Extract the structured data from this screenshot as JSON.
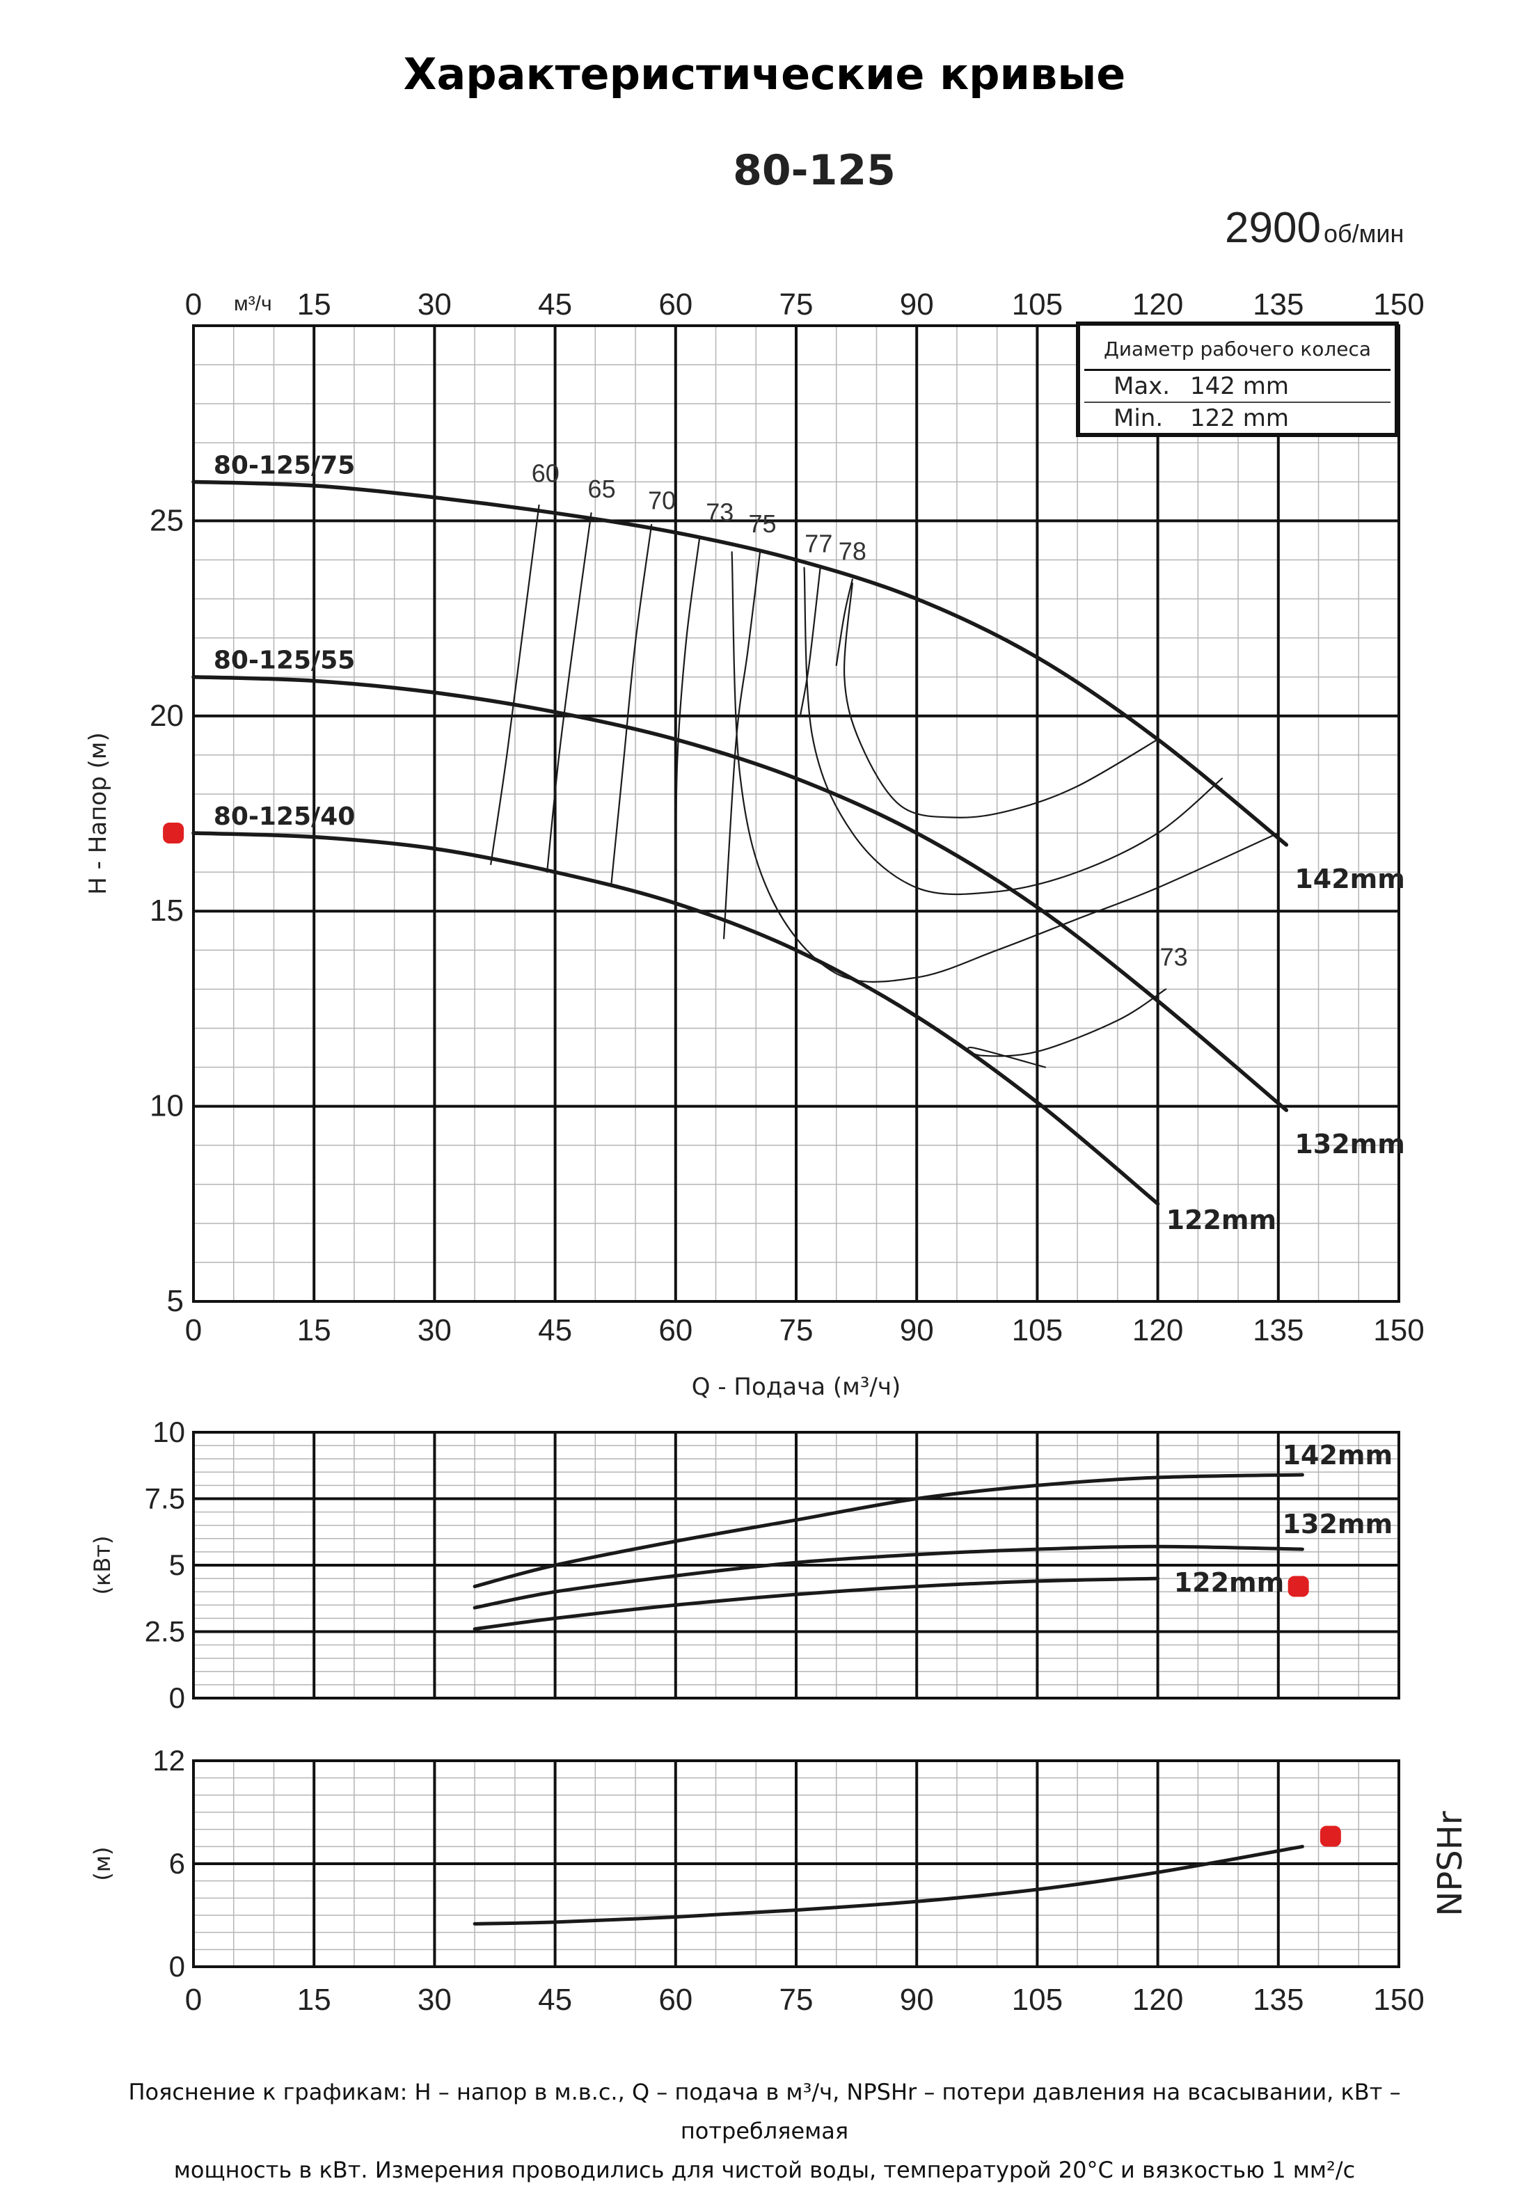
{
  "page": {
    "title": "Характеристические кривые",
    "model": "80-125",
    "speed_value": "2900",
    "speed_unit": "об/мин",
    "footnote_line1": "Пояснение к графикам: H – напор в м.в.с., Q – подача в м³/ч, NPSHr – потери давления на всасывании, кВт – потребляемая",
    "footnote_line2": "мощность в кВт. Измерения проводились для чистой воды, температурой 20°C и вязкостью 1 мм²/с"
  },
  "legend": {
    "header": "Диаметр рабочего колеса",
    "rows": [
      {
        "key": "Max.",
        "value": "142 mm"
      },
      {
        "key": "Min.",
        "value": "122 mm"
      }
    ]
  },
  "colors": {
    "curve": "#1a1a1a",
    "grid_major": "#111111",
    "grid_minor": "#b5b5b5",
    "marker": "#e02020"
  },
  "chart_data": [
    {
      "type": "line",
      "id": "head",
      "xlabel": "Q - Подача (м³/ч)",
      "ylabel": "H - Напор (м)",
      "x_unit_label": "м³/ч",
      "xlim": [
        0,
        150
      ],
      "ylim": [
        5,
        30
      ],
      "xticks": [
        0,
        15,
        30,
        45,
        60,
        75,
        90,
        105,
        120,
        135,
        150
      ],
      "yticks": [
        5,
        10,
        15,
        20,
        25
      ],
      "grid": true,
      "series": [
        {
          "name": "142mm",
          "label_left": "80-125/75",
          "x": [
            0,
            15,
            30,
            45,
            60,
            75,
            90,
            105,
            120,
            136
          ],
          "y": [
            26.0,
            25.9,
            25.6,
            25.2,
            24.7,
            24.0,
            23.0,
            21.5,
            19.4,
            16.7
          ]
        },
        {
          "name": "132mm",
          "label_left": "80-125/55",
          "x": [
            0,
            15,
            30,
            45,
            60,
            75,
            90,
            105,
            120,
            136
          ],
          "y": [
            21.0,
            20.9,
            20.6,
            20.1,
            19.4,
            18.4,
            17.0,
            15.1,
            12.7,
            9.9
          ]
        },
        {
          "name": "122mm",
          "label_left": "80-125/40",
          "x": [
            0,
            15,
            30,
            45,
            60,
            75,
            90,
            105,
            120
          ],
          "y": [
            17.0,
            16.9,
            16.6,
            16.0,
            15.2,
            14.0,
            12.3,
            10.1,
            7.5
          ]
        }
      ],
      "efficiency_labels": [
        "60",
        "65",
        "70",
        "73",
        "75",
        "77",
        "78",
        "73"
      ],
      "efficiency_lines": [
        {
          "label": "60",
          "x": [
            37,
            39,
            41,
            43
          ],
          "y": [
            16.2,
            19.0,
            22.2,
            25.4
          ]
        },
        {
          "label": "65",
          "x": [
            44,
            45.5,
            47.5,
            49.5
          ],
          "y": [
            16.0,
            19.0,
            22.2,
            25.2
          ]
        },
        {
          "label": "70",
          "x": [
            52,
            53.5,
            55,
            57
          ],
          "y": [
            15.7,
            18.8,
            21.9,
            24.9
          ]
        },
        {
          "label": "73",
          "x": [
            60,
            60.2,
            61.3,
            63
          ],
          "y": [
            15.1,
            18.8,
            21.9,
            24.6
          ]
        },
        {
          "label": "75",
          "x": [
            66,
            67.5,
            69,
            70.5
          ],
          "y": [
            14.3,
            19.3,
            21.7,
            24.2
          ]
        },
        {
          "label": "77",
          "x": [
            75.5,
            76.6,
            78
          ],
          "y": [
            20.0,
            21.3,
            23.8
          ]
        },
        {
          "label": "78",
          "x": [
            80,
            81,
            82
          ],
          "y": [
            21.3,
            22.6,
            23.5
          ]
        }
      ],
      "efficiency_loops": [
        {
          "x": [
            82,
            81,
            83,
            88,
            95,
            102,
            110,
            120
          ],
          "y": [
            23.4,
            21.0,
            19.3,
            17.7,
            17.4,
            17.6,
            18.2,
            19.4
          ]
        },
        {
          "x": [
            76,
            77,
            82,
            90,
            100,
            110,
            120,
            128
          ],
          "y": [
            23.8,
            19.5,
            17.0,
            15.6,
            15.5,
            16.0,
            17.0,
            18.4
          ]
        },
        {
          "x": [
            67,
            68,
            72,
            80,
            90,
            100,
            110,
            120,
            135
          ],
          "y": [
            24.2,
            18.5,
            15.3,
            13.4,
            13.3,
            14.0,
            14.8,
            15.6,
            17.0
          ]
        },
        {
          "x": [
            106,
            97,
            98,
            105,
            115,
            121
          ],
          "y": [
            11.0,
            11.5,
            11.3,
            11.4,
            12.2,
            13.0
          ]
        }
      ],
      "markers": [
        {
          "x": -2.5,
          "y": 17.0
        }
      ]
    },
    {
      "type": "line",
      "id": "power",
      "ylabel": "(кВт)",
      "xlim": [
        0,
        150
      ],
      "ylim": [
        0,
        10
      ],
      "yticks": [
        0,
        2.5,
        5,
        7.5,
        10
      ],
      "ytick_labels": [
        "0",
        "2.5",
        "5",
        "7.5",
        "10"
      ],
      "grid": true,
      "series": [
        {
          "name": "142mm",
          "x": [
            35,
            45,
            60,
            75,
            90,
            105,
            120,
            138
          ],
          "y": [
            4.2,
            5.0,
            5.9,
            6.7,
            7.5,
            8.0,
            8.3,
            8.4
          ]
        },
        {
          "name": "132mm",
          "x": [
            35,
            45,
            60,
            75,
            90,
            105,
            120,
            138
          ],
          "y": [
            3.4,
            4.0,
            4.6,
            5.1,
            5.4,
            5.6,
            5.7,
            5.6
          ]
        },
        {
          "name": "122mm",
          "x": [
            35,
            45,
            60,
            75,
            90,
            105,
            120
          ],
          "y": [
            2.6,
            3.0,
            3.5,
            3.9,
            4.2,
            4.4,
            4.5
          ]
        }
      ],
      "markers": [
        {
          "x": 137.5,
          "y": 4.2
        }
      ]
    },
    {
      "type": "line",
      "id": "npsh",
      "ylabel": "(м)",
      "side_label": "NPSHr",
      "xlim": [
        0,
        150
      ],
      "ylim": [
        0,
        12
      ],
      "xticks": [
        0,
        15,
        30,
        45,
        60,
        75,
        90,
        105,
        120,
        135,
        150
      ],
      "yticks": [
        0,
        6,
        12
      ],
      "grid": true,
      "series": [
        {
          "name": "NPSHr",
          "x": [
            35,
            45,
            60,
            75,
            90,
            105,
            120,
            138
          ],
          "y": [
            2.5,
            2.6,
            2.9,
            3.3,
            3.8,
            4.5,
            5.5,
            7.0
          ]
        }
      ],
      "markers": [
        {
          "x": 141.5,
          "y": 7.6
        }
      ]
    }
  ]
}
